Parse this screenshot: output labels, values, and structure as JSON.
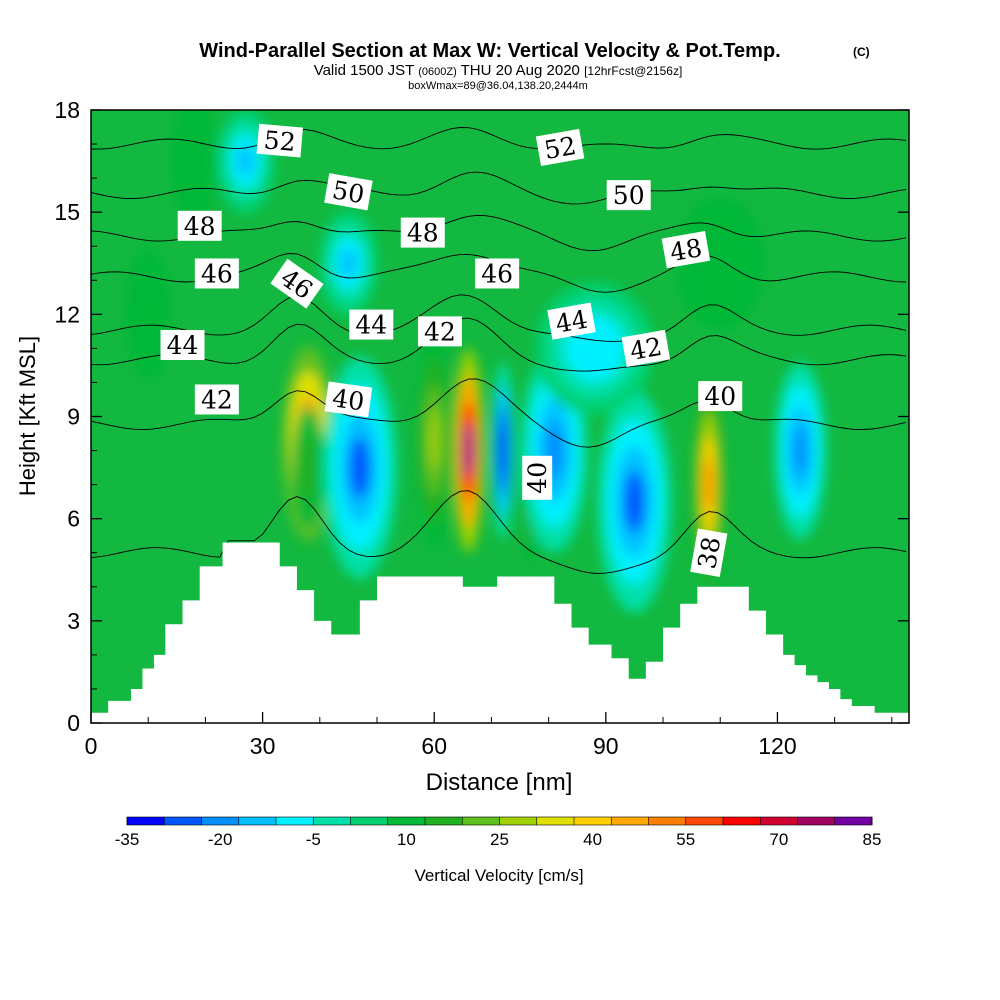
{
  "chart_data": {
    "type": "heatmap",
    "title": "Wind-Parallel Section at Max W: Vertical Velocity & Pot.Temp.",
    "title_mark": "(C)",
    "subtitle_parts": [
      "Valid 1500 JST ",
      "(0600Z)",
      " THU 20 Aug 2020 ",
      "[12hrFcst@2156z]"
    ],
    "subtitle2": "boxWmax=89@36.04,138.20,2444m",
    "xlabel": "Distance [nm]",
    "ylabel": "Height [Kft MSL]",
    "xlim": [
      0,
      143
    ],
    "ylim": [
      0,
      18
    ],
    "x_ticks": [
      "0",
      "30",
      "60",
      "90",
      "120"
    ],
    "y_ticks": [
      "0",
      "3",
      "6",
      "9",
      "12",
      "15",
      "18"
    ],
    "grid": false,
    "colorbar": {
      "label": "Vertical Velocity [cm/s]",
      "tick_labels": [
        "-35",
        "-20",
        "-5",
        "10",
        "25",
        "40",
        "55",
        "70",
        "85"
      ],
      "colors": [
        "#0000ff",
        "#0055ff",
        "#0090ff",
        "#00c0ff",
        "#00f0ff",
        "#00e0a8",
        "#00d070",
        "#00b838",
        "#20b020",
        "#60c020",
        "#a0d000",
        "#e0e000",
        "#ffd000",
        "#ffa800",
        "#ff8000",
        "#ff4800",
        "#ff0000",
        "#d00030",
        "#a00060",
        "#7000a0"
      ]
    },
    "terrain_kft": [
      [
        0,
        0.3
      ],
      [
        3,
        0.3
      ],
      [
        3,
        0.65
      ],
      [
        7,
        0.65
      ],
      [
        7,
        1
      ],
      [
        9,
        1
      ],
      [
        9,
        1.6
      ],
      [
        11,
        1.6
      ],
      [
        11,
        2
      ],
      [
        13,
        2
      ],
      [
        13,
        2.9
      ],
      [
        16,
        2.9
      ],
      [
        16,
        3.6
      ],
      [
        19,
        3.6
      ],
      [
        19,
        4.6
      ],
      [
        23,
        4.6
      ],
      [
        23,
        5.3
      ],
      [
        33,
        5.3
      ],
      [
        33,
        4.6
      ],
      [
        36,
        4.6
      ],
      [
        36,
        3.9
      ],
      [
        39,
        3.9
      ],
      [
        39,
        3
      ],
      [
        42,
        3
      ],
      [
        42,
        2.6
      ],
      [
        47,
        2.6
      ],
      [
        47,
        3.6
      ],
      [
        50,
        3.6
      ],
      [
        50,
        4.3
      ],
      [
        58,
        4.3
      ],
      [
        58,
        4.3
      ],
      [
        65,
        4.3
      ],
      [
        65,
        4
      ],
      [
        71,
        4
      ],
      [
        71,
        4.3
      ],
      [
        81,
        4.3
      ],
      [
        81,
        3.5
      ],
      [
        84,
        3.5
      ],
      [
        84,
        2.8
      ],
      [
        87,
        2.8
      ],
      [
        87,
        2.3
      ],
      [
        91,
        2.3
      ],
      [
        91,
        1.9
      ],
      [
        94,
        1.9
      ],
      [
        94,
        1.3
      ],
      [
        97,
        1.3
      ],
      [
        97,
        1.8
      ],
      [
        100,
        1.8
      ],
      [
        100,
        2.8
      ],
      [
        103,
        2.8
      ],
      [
        103,
        3.5
      ],
      [
        106,
        3.5
      ],
      [
        106,
        4
      ],
      [
        115,
        4
      ],
      [
        115,
        3.3
      ],
      [
        118,
        3.3
      ],
      [
        118,
        2.6
      ],
      [
        121,
        2.6
      ],
      [
        121,
        2
      ],
      [
        123,
        2
      ],
      [
        123,
        1.7
      ],
      [
        125,
        1.7
      ],
      [
        125,
        1.4
      ],
      [
        127,
        1.4
      ],
      [
        127,
        1.2
      ],
      [
        129,
        1.2
      ],
      [
        129,
        1
      ],
      [
        131,
        1
      ],
      [
        131,
        0.7
      ],
      [
        133,
        0.7
      ],
      [
        133,
        0.5
      ],
      [
        137,
        0.5
      ],
      [
        137,
        0.3
      ],
      [
        143,
        0.3
      ]
    ],
    "vertical_velocity_cells": [
      {
        "x": 38,
        "y": 8.2,
        "sx": 3.5,
        "sy": 2.2,
        "w": 55
      },
      {
        "x": 38,
        "y": 7.5,
        "sx": 2.2,
        "sy": 1.4,
        "w": 15
      },
      {
        "x": 47,
        "y": 7.5,
        "sx": 5,
        "sy": 2.5,
        "w": -25
      },
      {
        "x": 60,
        "y": 8.3,
        "sx": 2.5,
        "sy": 2.5,
        "w": 30
      },
      {
        "x": 66,
        "y": 8.0,
        "sx": 2.0,
        "sy": 2.3,
        "w": 85
      },
      {
        "x": 72,
        "y": 8.0,
        "sx": 1.5,
        "sy": 2.0,
        "w": -35
      },
      {
        "x": 77,
        "y": 7.2,
        "sx": 1.4,
        "sy": 2.0,
        "w": 25
      },
      {
        "x": 81,
        "y": 8.0,
        "sx": 4.5,
        "sy": 2.3,
        "w": -20
      },
      {
        "x": 95,
        "y": 6.5,
        "sx": 5,
        "sy": 2.5,
        "w": -25
      },
      {
        "x": 108,
        "y": 7.0,
        "sx": 2.0,
        "sy": 2.2,
        "w": 50
      },
      {
        "x": 124,
        "y": 8.0,
        "sx": 3.5,
        "sy": 2.0,
        "w": -20
      },
      {
        "x": 27,
        "y": 16.5,
        "sx": 4,
        "sy": 1.2,
        "w": -15
      },
      {
        "x": 45,
        "y": 13.5,
        "sx": 4,
        "sy": 1.2,
        "w": -12
      },
      {
        "x": 88,
        "y": 11.0,
        "sx": 8,
        "sy": 1.5,
        "w": -10
      },
      {
        "x": 18,
        "y": 16.5,
        "sx": 3,
        "sy": 1.5,
        "w": 10
      },
      {
        "x": 110,
        "y": 13.5,
        "sx": 6,
        "sy": 1.5,
        "w": 10
      },
      {
        "x": 10,
        "y": 12.0,
        "sx": 3,
        "sy": 1.5,
        "w": 10
      }
    ],
    "theta_contours_K": [
      {
        "value": "38",
        "x": 108,
        "y": 5.0,
        "rot": -80
      },
      {
        "value": "40",
        "x": 45,
        "y": 9.5,
        "rot": 8
      },
      {
        "value": "40",
        "x": 78,
        "y": 7.2,
        "rot": -90
      },
      {
        "value": "40",
        "x": 110,
        "y": 9.6,
        "rot": 0
      },
      {
        "value": "42",
        "x": 22,
        "y": 9.5,
        "rot": 0
      },
      {
        "value": "42",
        "x": 61,
        "y": 11.5,
        "rot": 0
      },
      {
        "value": "42",
        "x": 97,
        "y": 11.0,
        "rot": -10
      },
      {
        "value": "44",
        "x": 16,
        "y": 11.1,
        "rot": 0
      },
      {
        "value": "44",
        "x": 49,
        "y": 11.7,
        "rot": 0
      },
      {
        "value": "44",
        "x": 84,
        "y": 11.8,
        "rot": -10
      },
      {
        "value": "46",
        "x": 22,
        "y": 13.2,
        "rot": 0
      },
      {
        "value": "46",
        "x": 36,
        "y": 12.9,
        "rot": 35
      },
      {
        "value": "46",
        "x": 71,
        "y": 13.2,
        "rot": 0
      },
      {
        "value": "48",
        "x": 19,
        "y": 14.6,
        "rot": 0
      },
      {
        "value": "48",
        "x": 58,
        "y": 14.4,
        "rot": 0
      },
      {
        "value": "48",
        "x": 104,
        "y": 13.9,
        "rot": -10
      },
      {
        "value": "50",
        "x": 45,
        "y": 15.6,
        "rot": 10
      },
      {
        "value": "50",
        "x": 94,
        "y": 15.5,
        "rot": 0
      },
      {
        "value": "52",
        "x": 33,
        "y": 17.1,
        "rot": 5
      },
      {
        "value": "52",
        "x": 82,
        "y": 16.9,
        "rot": -10
      }
    ]
  }
}
